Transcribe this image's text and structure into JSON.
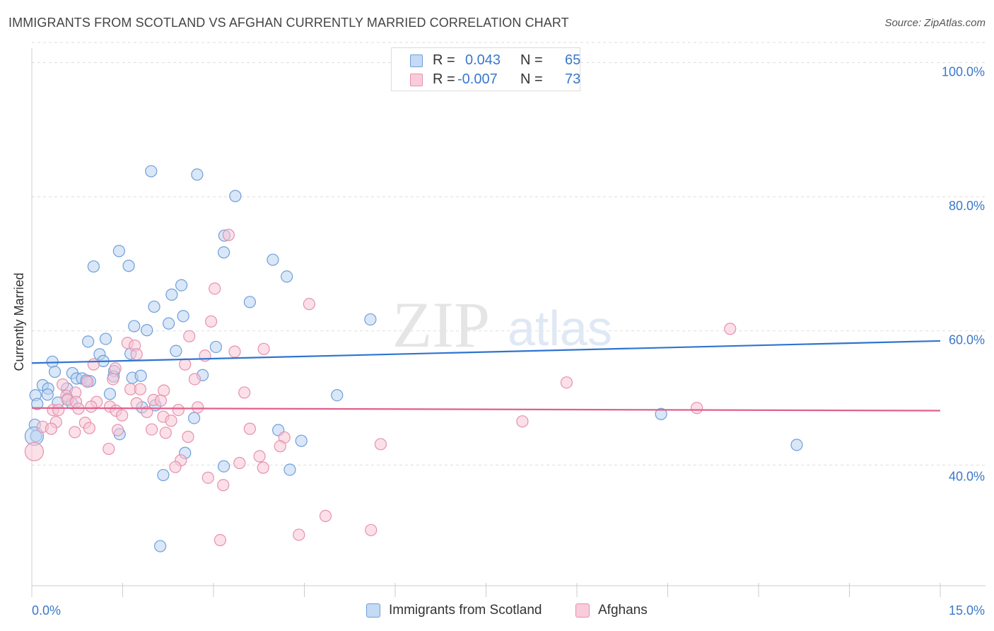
{
  "header": {
    "title": "IMMIGRANTS FROM SCOTLAND VS AFGHAN CURRENTLY MARRIED CORRELATION CHART",
    "source": "Source: ZipAtlas.com"
  },
  "legend": {
    "r_label": "R =",
    "n_label": "N =",
    "rows": [
      {
        "r": "0.043",
        "n": "65"
      },
      {
        "r": "-0.007",
        "n": "73"
      }
    ]
  },
  "watermark": {
    "zip": "ZIP",
    "atlas": "atlas"
  },
  "colors": {
    "blue_fill": "#b9d3f3",
    "blue_stroke": "#6f9fd8",
    "blue_line": "#2f74d0",
    "pink_fill": "#f7c6d5",
    "pink_stroke": "#e691ad",
    "pink_line": "#e0608c",
    "tick_label": "#3a78c9"
  },
  "chart_data": {
    "type": "scatter",
    "title": "IMMIGRANTS FROM SCOTLAND VS AFGHAN CURRENTLY MARRIED CORRELATION CHART",
    "xlabel": "",
    "ylabel": "Currently Married",
    "xlim": [
      0,
      15
    ],
    "ylim": [
      22,
      103
    ],
    "x_tick_labels": [
      "0.0%",
      "15.0%"
    ],
    "y_ticks": [
      40,
      60,
      80,
      100
    ],
    "y_tick_labels": [
      "40.0%",
      "60.0%",
      "80.0%",
      "100.0%"
    ],
    "grid": true,
    "legend_position": "top-center",
    "series": [
      {
        "name": "Immigrants from Scotland",
        "color": "blue",
        "r": 0.043,
        "n": 65,
        "trend": {
          "x": [
            0,
            15
          ],
          "y": [
            55.2,
            58.5
          ]
        },
        "points": [
          [
            1.97,
            83.8
          ],
          [
            2.73,
            83.3
          ],
          [
            3.36,
            80.1
          ],
          [
            3.18,
            74.2
          ],
          [
            3.17,
            71.7
          ],
          [
            1.44,
            71.9
          ],
          [
            1.02,
            69.6
          ],
          [
            1.6,
            69.7
          ],
          [
            3.98,
            70.6
          ],
          [
            4.21,
            68.1
          ],
          [
            2.47,
            66.8
          ],
          [
            2.31,
            65.4
          ],
          [
            2.02,
            63.6
          ],
          [
            3.6,
            64.3
          ],
          [
            2.5,
            62.2
          ],
          [
            2.26,
            61.1
          ],
          [
            5.59,
            61.7
          ],
          [
            1.69,
            60.7
          ],
          [
            1.9,
            60.1
          ],
          [
            0.93,
            58.4
          ],
          [
            1.22,
            58.8
          ],
          [
            2.38,
            57.0
          ],
          [
            3.04,
            57.6
          ],
          [
            1.63,
            56.6
          ],
          [
            1.12,
            56.5
          ],
          [
            1.18,
            55.5
          ],
          [
            0.34,
            55.4
          ],
          [
            1.36,
            54.0
          ],
          [
            0.38,
            53.9
          ],
          [
            0.67,
            53.7
          ],
          [
            1.35,
            53.2
          ],
          [
            1.66,
            53.0
          ],
          [
            1.8,
            53.3
          ],
          [
            2.82,
            53.4
          ],
          [
            0.74,
            52.9
          ],
          [
            0.83,
            52.9
          ],
          [
            0.96,
            52.5
          ],
          [
            0.9,
            52.6
          ],
          [
            0.18,
            51.9
          ],
          [
            0.27,
            51.4
          ],
          [
            0.58,
            51.4
          ],
          [
            0.06,
            50.4
          ],
          [
            0.26,
            50.5
          ],
          [
            0.59,
            49.9
          ],
          [
            0.66,
            49.2
          ],
          [
            0.43,
            49.3
          ],
          [
            1.29,
            50.6
          ],
          [
            5.04,
            50.4
          ],
          [
            1.82,
            48.6
          ],
          [
            2.04,
            48.9
          ],
          [
            0.09,
            49.1
          ],
          [
            0.05,
            46.0
          ],
          [
            0.07,
            44.3
          ],
          [
            2.68,
            47.0
          ],
          [
            4.07,
            45.2
          ],
          [
            1.45,
            44.6
          ],
          [
            4.45,
            43.6
          ],
          [
            10.39,
            47.6
          ],
          [
            12.63,
            43.0
          ],
          [
            2.53,
            41.8
          ],
          [
            3.17,
            39.8
          ],
          [
            4.26,
            39.3
          ],
          [
            2.17,
            38.5
          ],
          [
            2.12,
            27.9
          ],
          [
            0.04,
            44.3
          ]
        ]
      },
      {
        "name": "Afghans",
        "color": "pink",
        "r": -0.007,
        "n": 73,
        "trend": {
          "x": [
            0,
            15
          ],
          "y": [
            48.5,
            48.1
          ]
        },
        "points": [
          [
            3.25,
            74.3
          ],
          [
            3.02,
            66.3
          ],
          [
            4.58,
            64.0
          ],
          [
            2.96,
            61.4
          ],
          [
            11.53,
            60.3
          ],
          [
            2.6,
            59.2
          ],
          [
            1.58,
            58.2
          ],
          [
            1.7,
            57.8
          ],
          [
            3.83,
            57.3
          ],
          [
            3.35,
            56.9
          ],
          [
            1.73,
            56.5
          ],
          [
            2.86,
            56.3
          ],
          [
            2.53,
            55.0
          ],
          [
            1.02,
            55.0
          ],
          [
            1.38,
            54.4
          ],
          [
            1.34,
            52.8
          ],
          [
            2.69,
            52.8
          ],
          [
            8.83,
            52.3
          ],
          [
            0.92,
            52.4
          ],
          [
            0.51,
            52.0
          ],
          [
            1.63,
            51.3
          ],
          [
            1.79,
            51.3
          ],
          [
            2.18,
            51.1
          ],
          [
            3.51,
            50.8
          ],
          [
            0.72,
            50.8
          ],
          [
            0.57,
            50.3
          ],
          [
            0.59,
            49.7
          ],
          [
            2.01,
            49.7
          ],
          [
            2.13,
            49.6
          ],
          [
            0.73,
            49.4
          ],
          [
            1.07,
            49.4
          ],
          [
            1.73,
            49.2
          ],
          [
            1.29,
            48.7
          ],
          [
            0.98,
            48.7
          ],
          [
            0.35,
            48.2
          ],
          [
            0.44,
            48.2
          ],
          [
            2.42,
            48.2
          ],
          [
            2.74,
            48.6
          ],
          [
            1.39,
            48.1
          ],
          [
            0.77,
            48.4
          ],
          [
            1.9,
            47.9
          ],
          [
            1.49,
            47.4
          ],
          [
            2.17,
            47.2
          ],
          [
            2.3,
            46.6
          ],
          [
            8.1,
            46.5
          ],
          [
            10.98,
            48.5
          ],
          [
            0.4,
            46.4
          ],
          [
            0.88,
            46.3
          ],
          [
            0.95,
            45.5
          ],
          [
            0.18,
            45.7
          ],
          [
            0.32,
            45.4
          ],
          [
            1.42,
            45.2
          ],
          [
            1.98,
            45.3
          ],
          [
            3.6,
            45.4
          ],
          [
            0.71,
            44.9
          ],
          [
            2.21,
            44.8
          ],
          [
            2.58,
            44.2
          ],
          [
            4.17,
            44.1
          ],
          [
            1.27,
            42.4
          ],
          [
            4.1,
            42.8
          ],
          [
            5.76,
            43.1
          ],
          [
            3.76,
            41.3
          ],
          [
            2.46,
            40.7
          ],
          [
            3.43,
            40.3
          ],
          [
            3.82,
            39.6
          ],
          [
            2.37,
            39.7
          ],
          [
            2.91,
            38.1
          ],
          [
            3.16,
            37.0
          ],
          [
            4.85,
            32.4
          ],
          [
            5.6,
            30.3
          ],
          [
            4.41,
            29.6
          ],
          [
            3.11,
            28.8
          ],
          [
            0.04,
            42.0
          ]
        ]
      }
    ]
  },
  "bottom_legend": [
    {
      "label": "Immigrants from Scotland"
    },
    {
      "label": "Afghans"
    }
  ]
}
